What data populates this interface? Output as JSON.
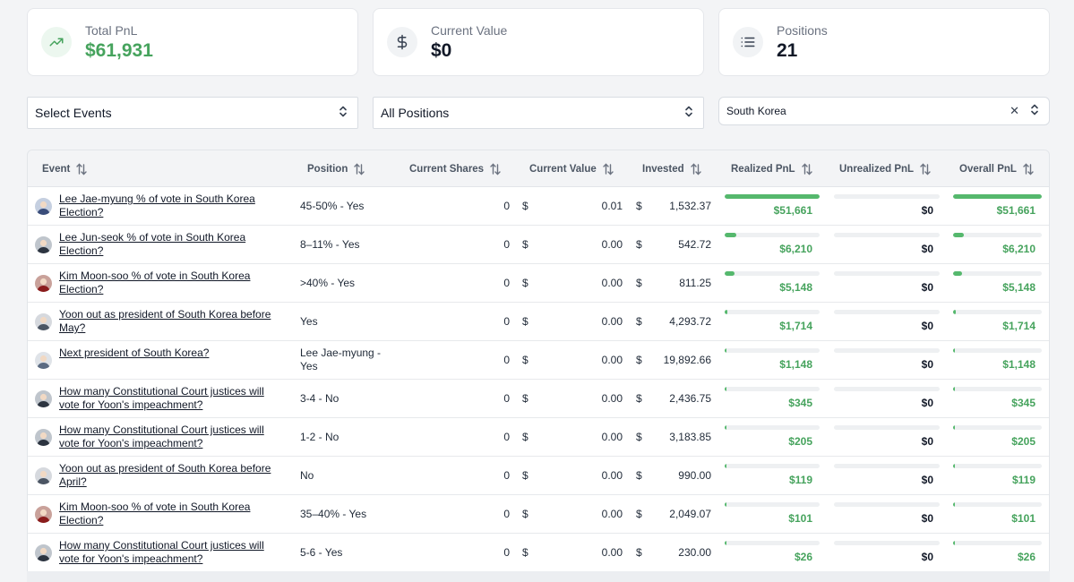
{
  "summary": {
    "total_pnl": {
      "label": "Total PnL",
      "value": "$61,931",
      "icon": "trending-up-icon"
    },
    "current_value": {
      "label": "Current Value",
      "value": "$0",
      "icon": "dollar-icon"
    },
    "positions": {
      "label": "Positions",
      "value": "21",
      "icon": "list-icon"
    }
  },
  "filters": {
    "events": "Select Events",
    "positions": "All Positions",
    "search_value": "South Korea"
  },
  "table": {
    "headers": {
      "event": "Event",
      "position": "Position",
      "current_shares": "Current Shares",
      "current_value": "Current Value",
      "invested": "Invested",
      "realized_pnl": "Realized PnL",
      "unrealized_pnl": "Unrealized PnL",
      "overall_pnl": "Overall PnL"
    },
    "currency_symbol": "$",
    "rows": [
      {
        "event": "Lee Jae-myung % of vote in South Korea Election?",
        "position": "45-50% - Yes",
        "shares": "0",
        "value": "0.01",
        "invested": "1,532.37",
        "realized": "$51,661",
        "realized_level": 1.0,
        "unrealized": "$0",
        "overall": "$51,661",
        "overall_level": 1.0,
        "avatar": "blue"
      },
      {
        "event": "Lee Jun-seok % of vote in South Korea Election?",
        "position": "8–11% - Yes",
        "shares": "0",
        "value": "0.00",
        "invested": "542.72",
        "realized": "$6,210",
        "realized_level": 0.12,
        "unrealized": "$0",
        "overall": "$6,210",
        "overall_level": 0.12,
        "avatar": "dark"
      },
      {
        "event": "Kim Moon-soo % of vote in South Korea Election?",
        "position": ">40% - Yes",
        "shares": "0",
        "value": "0.00",
        "invested": "811.25",
        "realized": "$5,148",
        "realized_level": 0.1,
        "unrealized": "$0",
        "overall": "$5,148",
        "overall_level": 0.1,
        "avatar": "red"
      },
      {
        "event": "Yoon out as president of South Korea before May?",
        "position": "Yes",
        "shares": "0",
        "value": "0.00",
        "invested": "4,293.72",
        "realized": "$1,714",
        "realized_level": 0.033,
        "unrealized": "$0",
        "overall": "$1,714",
        "overall_level": 0.033,
        "avatar": "gray"
      },
      {
        "event": "Next president of South Korea?",
        "position": "Lee Jae-myung - Yes",
        "shares": "0",
        "value": "0.00",
        "invested": "19,892.66",
        "realized": "$1,148",
        "realized_level": 0.022,
        "unrealized": "$0",
        "overall": "$1,148",
        "overall_level": 0.022,
        "avatar": "light"
      },
      {
        "event": "How many Constitutional Court justices will vote for Yoon's impeachment?",
        "position": "3-4 - No",
        "shares": "0",
        "value": "0.00",
        "invested": "2,436.75",
        "realized": "$345",
        "realized_level": 0.007,
        "unrealized": "$0",
        "overall": "$345",
        "overall_level": 0.007,
        "avatar": "dark"
      },
      {
        "event": "How many Constitutional Court justices will vote for Yoon's impeachment?",
        "position": "1-2 - No",
        "shares": "0",
        "value": "0.00",
        "invested": "3,183.85",
        "realized": "$205",
        "realized_level": 0.004,
        "unrealized": "$0",
        "overall": "$205",
        "overall_level": 0.004,
        "avatar": "dark"
      },
      {
        "event": "Yoon out as president of South Korea before April?",
        "position": "No",
        "shares": "0",
        "value": "0.00",
        "invested": "990.00",
        "realized": "$119",
        "realized_level": 0.002,
        "unrealized": "$0",
        "overall": "$119",
        "overall_level": 0.002,
        "avatar": "gray"
      },
      {
        "event": "Kim Moon-soo % of vote in South Korea Election?",
        "position": "35–40% - Yes",
        "shares": "0",
        "value": "0.00",
        "invested": "2,049.07",
        "realized": "$101",
        "realized_level": 0.002,
        "unrealized": "$0",
        "overall": "$101",
        "overall_level": 0.002,
        "avatar": "red"
      },
      {
        "event": "How many Constitutional Court justices will vote for Yoon's impeachment?",
        "position": "5-6 - Yes",
        "shares": "0",
        "value": "0.00",
        "invested": "230.00",
        "realized": "$26",
        "realized_level": 0.001,
        "unrealized": "$0",
        "overall": "$26",
        "overall_level": 0.001,
        "avatar": "dark"
      }
    ]
  },
  "colors": {
    "accent_green": "#46a35d",
    "bar_green": "#55b86d",
    "bar_track": "#eef0f2"
  }
}
